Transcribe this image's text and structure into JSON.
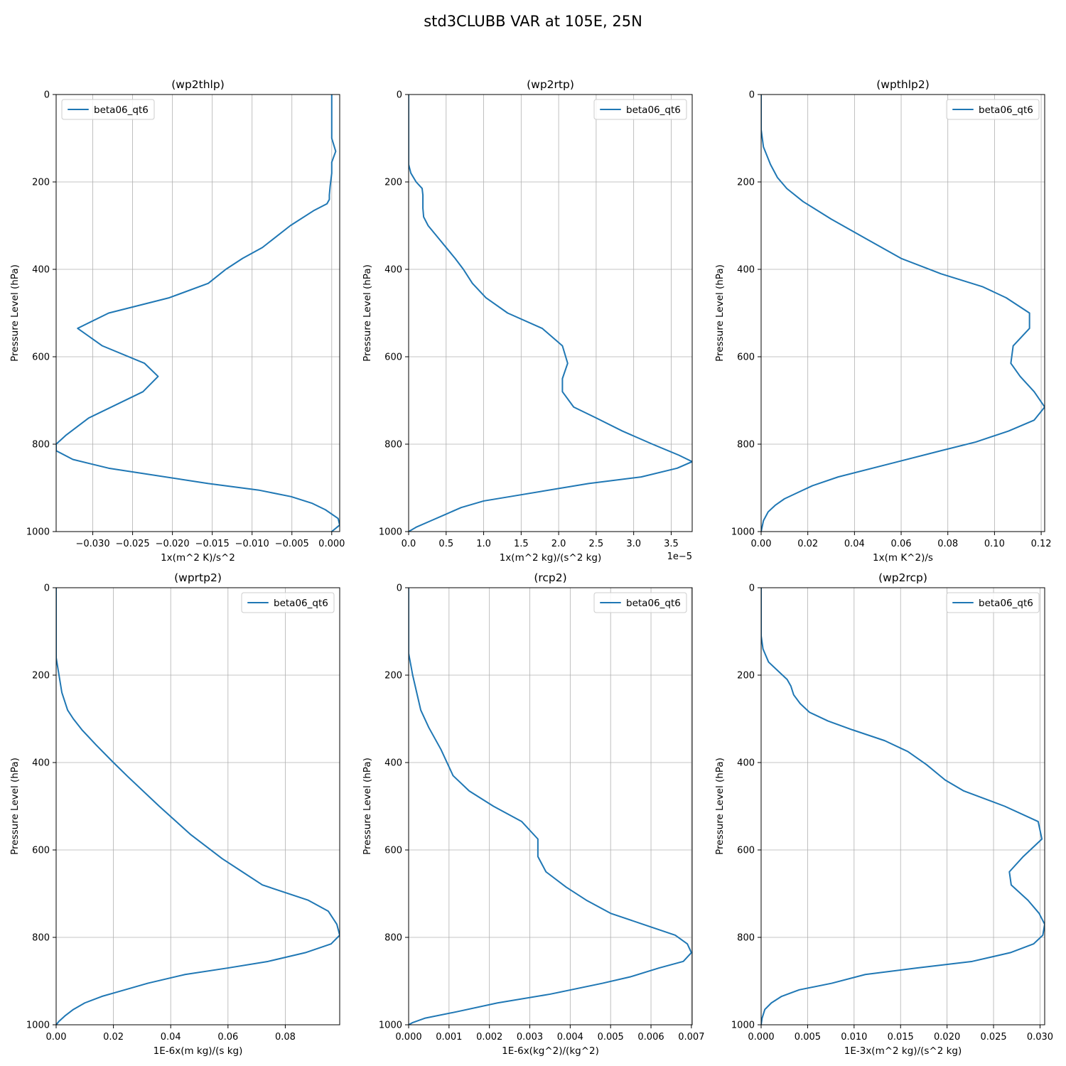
{
  "figure_title": "std3CLUBB VAR at 105E, 25N",
  "colors": {
    "series": "#1f77b4",
    "grid": "#b0b0b0",
    "frame": "#000000",
    "background": "#ffffff"
  },
  "chart_data": [
    {
      "type": "line",
      "title": "(wp2thlp)",
      "xlabel": "1x(m^2 K)/s^2",
      "ylabel": "Pressure Level (hPa)",
      "xlim": [
        -0.0346,
        0.001
      ],
      "ylim": [
        1000,
        0
      ],
      "y_inverted": true,
      "grid": true,
      "legend_position": "upper-left",
      "offset_text": "",
      "xticks": [
        -0.03,
        -0.025,
        -0.02,
        -0.015,
        -0.01,
        -0.005,
        0.0
      ],
      "xtick_labels": [
        "−0.030",
        "−0.025",
        "−0.020",
        "−0.015",
        "−0.010",
        "−0.005",
        "0.000"
      ],
      "yticks": [
        0,
        200,
        400,
        600,
        800,
        1000
      ],
      "ytick_labels": [
        "0",
        "200",
        "400",
        "600",
        "800",
        "1000"
      ],
      "series": [
        {
          "name": "beta06_qt6",
          "x": [
            0.0,
            0.0,
            0.0,
            0.0005,
            0.0,
            0.0,
            -0.0002,
            -0.0003,
            -0.0003,
            -0.0006,
            -0.0022,
            -0.0052,
            -0.0087,
            -0.0112,
            -0.0133,
            -0.0155,
            -0.0204,
            -0.028,
            -0.0319,
            -0.0288,
            -0.0235,
            -0.0218,
            -0.0237,
            -0.0305,
            -0.0334,
            -0.0346,
            -0.0346,
            -0.0325,
            -0.028,
            -0.0155,
            -0.0092,
            -0.0051,
            -0.0025,
            -0.0008,
            0.0008,
            0.001,
            0.0
          ],
          "y": [
            0,
            50,
            100,
            130,
            155,
            180,
            210,
            230,
            240,
            250,
            265,
            300,
            350,
            375,
            400,
            432,
            465,
            500,
            535,
            575,
            615,
            645,
            680,
            740,
            780,
            800,
            815,
            835,
            855,
            890,
            905,
            920,
            935,
            950,
            970,
            985,
            1000
          ]
        }
      ]
    },
    {
      "type": "line",
      "title": "(wp2rtp)",
      "xlabel": "1x(m^2 kg)/(s^2 kg)",
      "ylabel": "Pressure Level (hPa)",
      "xlim": [
        0,
        3.78
      ],
      "ylim": [
        1000,
        0
      ],
      "y_inverted": true,
      "grid": true,
      "legend_position": "upper-right",
      "offset_text": "1e−5",
      "xticks": [
        0.0,
        0.5,
        1.0,
        1.5,
        2.0,
        2.5,
        3.0,
        3.5
      ],
      "xtick_labels": [
        "0.0",
        "0.5",
        "1.0",
        "1.5",
        "2.0",
        "2.5",
        "3.0",
        "3.5"
      ],
      "yticks": [
        0,
        200,
        400,
        600,
        800,
        1000
      ],
      "ytick_labels": [
        "0",
        "200",
        "400",
        "600",
        "800",
        "1000"
      ],
      "series": [
        {
          "name": "beta06_qt6",
          "x": [
            0.0,
            0.0,
            0.03,
            0.1,
            0.18,
            0.19,
            0.19,
            0.2,
            0.26,
            0.38,
            0.62,
            0.73,
            0.85,
            1.03,
            1.32,
            1.78,
            2.05,
            2.12,
            2.05,
            2.05,
            2.2,
            2.5,
            2.85,
            3.25,
            3.6,
            3.78,
            3.58,
            3.1,
            2.4,
            1.35,
            1.0,
            0.7,
            0.5,
            0.3,
            0.1,
            0.0
          ],
          "y": [
            0,
            160,
            180,
            200,
            215,
            230,
            260,
            280,
            300,
            325,
            375,
            400,
            432,
            465,
            500,
            535,
            575,
            615,
            650,
            680,
            715,
            740,
            770,
            800,
            825,
            840,
            855,
            875,
            890,
            920,
            930,
            945,
            960,
            975,
            990,
            1000
          ]
        }
      ]
    },
    {
      "type": "line",
      "title": "(wpthlp2)",
      "xlabel": "1x(m K^2)/s",
      "ylabel": "Pressure Level (hPa)",
      "xlim": [
        0,
        0.1215
      ],
      "ylim": [
        1000,
        0
      ],
      "y_inverted": true,
      "grid": true,
      "legend_position": "upper-right",
      "offset_text": "",
      "xticks": [
        0.0,
        0.02,
        0.04,
        0.06,
        0.08,
        0.1,
        0.12
      ],
      "xtick_labels": [
        "0.00",
        "0.02",
        "0.04",
        "0.06",
        "0.08",
        "0.10",
        "0.12"
      ],
      "yticks": [
        0,
        200,
        400,
        600,
        800,
        1000
      ],
      "ytick_labels": [
        "0",
        "200",
        "400",
        "600",
        "800",
        "1000"
      ],
      "series": [
        {
          "name": "beta06_qt6",
          "x": [
            0.0,
            0.0,
            0.001,
            0.004,
            0.007,
            0.011,
            0.018,
            0.03,
            0.045,
            0.06,
            0.077,
            0.095,
            0.105,
            0.115,
            0.115,
            0.108,
            0.107,
            0.111,
            0.117,
            0.1215,
            0.117,
            0.106,
            0.092,
            0.077,
            0.055,
            0.033,
            0.022,
            0.016,
            0.01,
            0.006,
            0.003,
            0.001,
            0.0
          ],
          "y": [
            0,
            80,
            120,
            160,
            190,
            215,
            245,
            285,
            330,
            375,
            410,
            440,
            465,
            500,
            535,
            575,
            615,
            645,
            680,
            715,
            745,
            770,
            795,
            815,
            845,
            875,
            895,
            910,
            925,
            940,
            955,
            975,
            1000
          ]
        }
      ]
    },
    {
      "type": "line",
      "title": "(wprtp2)",
      "xlabel": "1E-6x(m kg)/(s kg)",
      "ylabel": "Pressure Level (hPa)",
      "xlim": [
        0,
        0.099
      ],
      "ylim": [
        1000,
        0
      ],
      "y_inverted": true,
      "grid": true,
      "legend_position": "upper-right",
      "offset_text": "",
      "xticks": [
        0.0,
        0.02,
        0.04,
        0.06,
        0.08
      ],
      "xtick_labels": [
        "0.00",
        "0.02",
        "0.04",
        "0.06",
        "0.08"
      ],
      "yticks": [
        0,
        200,
        400,
        600,
        800,
        1000
      ],
      "ytick_labels": [
        "0",
        "200",
        "400",
        "600",
        "800",
        "1000"
      ],
      "series": [
        {
          "name": "beta06_qt6",
          "x": [
            0.0,
            0.0,
            0.001,
            0.002,
            0.004,
            0.006,
            0.009,
            0.014,
            0.02,
            0.025,
            0.036,
            0.047,
            0.058,
            0.065,
            0.072,
            0.088,
            0.095,
            0.098,
            0.099,
            0.096,
            0.087,
            0.074,
            0.06,
            0.045,
            0.032,
            0.024,
            0.016,
            0.01,
            0.006,
            0.003,
            0.001,
            0.0
          ],
          "y": [
            0,
            160,
            200,
            240,
            280,
            300,
            325,
            360,
            400,
            432,
            500,
            565,
            620,
            650,
            680,
            715,
            740,
            770,
            795,
            815,
            835,
            855,
            870,
            885,
            905,
            920,
            935,
            950,
            965,
            980,
            992,
            1000
          ]
        }
      ]
    },
    {
      "type": "line",
      "title": "(rcp2)",
      "xlabel": "1E-6x(kg^2)/(kg^2)",
      "ylabel": "Pressure Level (hPa)",
      "xlim": [
        0,
        0.00702
      ],
      "ylim": [
        1000,
        0
      ],
      "y_inverted": true,
      "grid": true,
      "legend_position": "upper-right",
      "offset_text": "",
      "xticks": [
        0.0,
        0.001,
        0.002,
        0.003,
        0.004,
        0.005,
        0.006,
        0.007
      ],
      "xtick_labels": [
        "0.000",
        "0.001",
        "0.002",
        "0.003",
        "0.004",
        "0.005",
        "0.006",
        "0.007"
      ],
      "yticks": [
        0,
        200,
        400,
        600,
        800,
        1000
      ],
      "ytick_labels": [
        "0",
        "200",
        "400",
        "600",
        "800",
        "1000"
      ],
      "series": [
        {
          "name": "beta06_qt6",
          "x": [
            0.0,
            0.0,
            0.0001,
            0.0002,
            0.0003,
            0.0005,
            0.0008,
            0.0011,
            0.0015,
            0.0021,
            0.0028,
            0.0032,
            0.0032,
            0.0034,
            0.0039,
            0.0044,
            0.005,
            0.0058,
            0.0066,
            0.0069,
            0.007,
            0.0068,
            0.0062,
            0.0055,
            0.0048,
            0.0035,
            0.0022,
            0.0012,
            0.0004,
            0.0001,
            0.0
          ],
          "y": [
            0,
            150,
            200,
            240,
            280,
            320,
            370,
            430,
            465,
            500,
            535,
            575,
            615,
            650,
            685,
            715,
            745,
            770,
            795,
            815,
            835,
            855,
            870,
            890,
            905,
            930,
            950,
            970,
            985,
            995,
            1000
          ]
        }
      ]
    },
    {
      "type": "line",
      "title": "(wp2rcp)",
      "xlabel": "1E-3x(m^2 kg)/(s^2 kg)",
      "ylabel": "Pressure Level (hPa)",
      "xlim": [
        0,
        0.0305
      ],
      "ylim": [
        1000,
        0
      ],
      "y_inverted": true,
      "grid": true,
      "legend_position": "upper-right",
      "offset_text": "",
      "xticks": [
        0.0,
        0.005,
        0.01,
        0.015,
        0.02,
        0.025,
        0.03
      ],
      "xtick_labels": [
        "0.000",
        "0.005",
        "0.010",
        "0.015",
        "0.020",
        "0.025",
        "0.030"
      ],
      "yticks": [
        0,
        200,
        400,
        600,
        800,
        1000
      ],
      "ytick_labels": [
        "0",
        "200",
        "400",
        "600",
        "800",
        "1000"
      ],
      "series": [
        {
          "name": "beta06_qt6",
          "x": [
            0.0,
            0.0,
            0.0002,
            0.0008,
            0.0018,
            0.0028,
            0.0032,
            0.0035,
            0.0042,
            0.0052,
            0.0072,
            0.0098,
            0.0133,
            0.0158,
            0.0178,
            0.0198,
            0.0218,
            0.0262,
            0.0298,
            0.0302,
            0.0282,
            0.0267,
            0.0269,
            0.0287,
            0.0299,
            0.0305,
            0.0303,
            0.0293,
            0.0268,
            0.0227,
            0.0168,
            0.0112,
            0.0076,
            0.0041,
            0.0022,
            0.0011,
            0.0004,
            0.0001,
            0.0
          ],
          "y": [
            0,
            110,
            140,
            170,
            190,
            210,
            225,
            245,
            265,
            285,
            305,
            325,
            350,
            375,
            405,
            440,
            465,
            500,
            535,
            575,
            615,
            650,
            680,
            715,
            745,
            770,
            795,
            815,
            835,
            855,
            870,
            885,
            905,
            920,
            935,
            950,
            965,
            985,
            1000
          ]
        }
      ]
    }
  ]
}
